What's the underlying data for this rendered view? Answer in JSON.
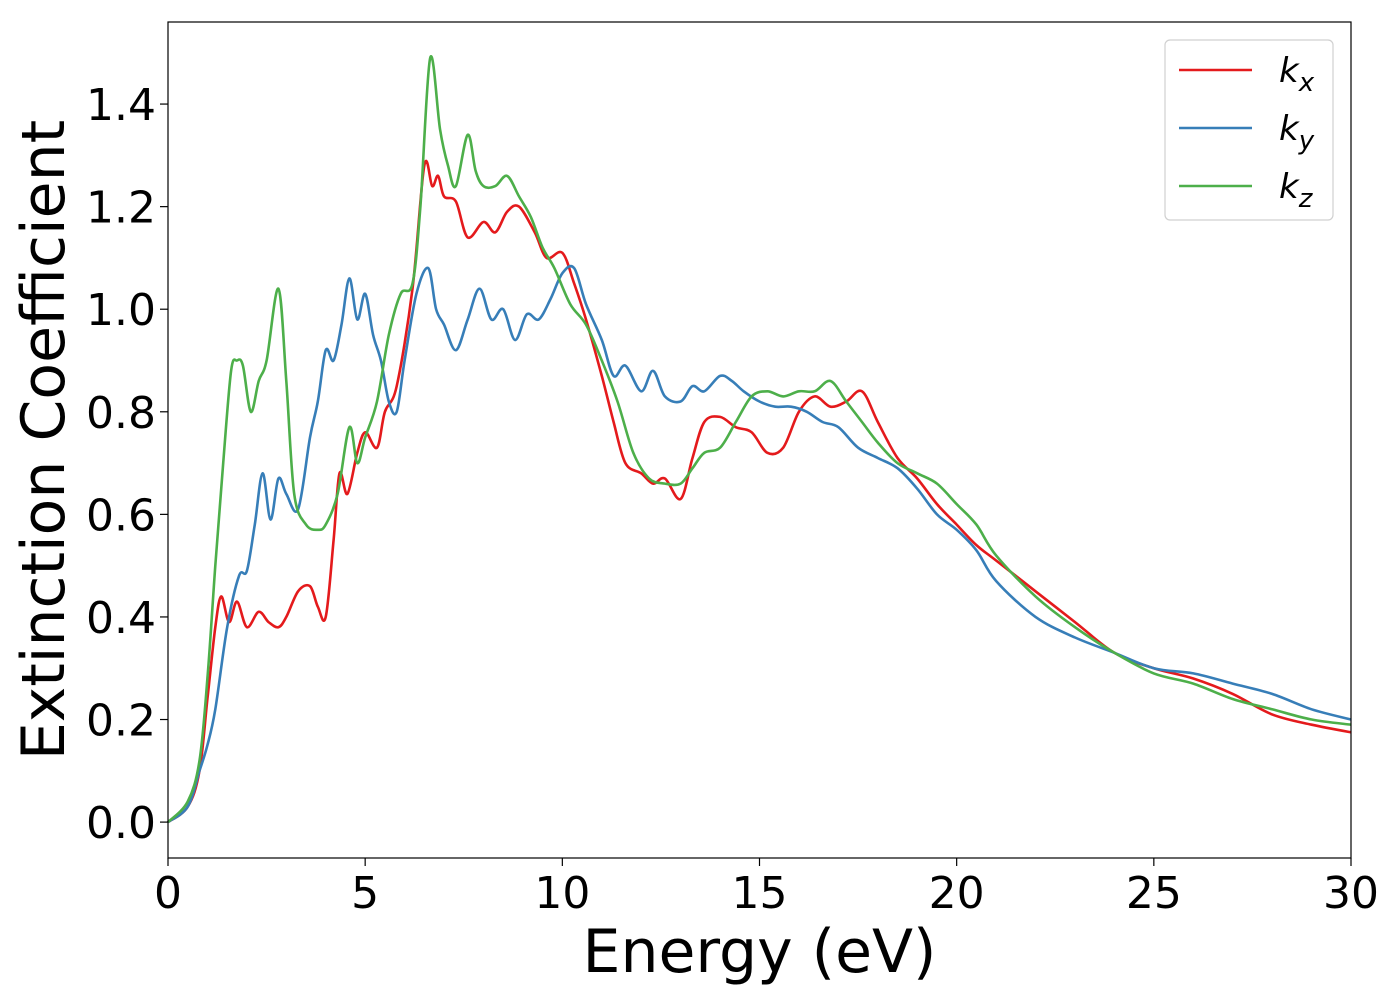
{
  "chart_data": {
    "type": "line",
    "title": "",
    "xlabel": "Energy (eV)",
    "ylabel": "Extinction Coefficient",
    "xlim": [
      0,
      30
    ],
    "ylim": [
      -0.07,
      1.56
    ],
    "xticks": [
      0,
      5,
      10,
      15,
      20,
      25,
      30
    ],
    "xtick_labels": [
      "0",
      "5",
      "10",
      "15",
      "20",
      "25",
      "30"
    ],
    "yticks": [
      0.0,
      0.2,
      0.4,
      0.6,
      0.8,
      1.0,
      1.2,
      1.4
    ],
    "ytick_labels": [
      "0.0",
      "0.2",
      "0.4",
      "0.6",
      "0.8",
      "1.0",
      "1.2",
      "1.4"
    ],
    "grid": false,
    "legend_position": "top-right",
    "series": [
      {
        "name": "k_x",
        "label_main": "k",
        "label_sub": "x",
        "color": "#e41a1c",
        "x": [
          0,
          0.5,
          0.8,
          1.0,
          1.2,
          1.35,
          1.55,
          1.75,
          2.0,
          2.3,
          2.55,
          2.8,
          3.0,
          3.3,
          3.6,
          3.8,
          4.0,
          4.2,
          4.35,
          4.55,
          4.8,
          5.0,
          5.3,
          5.5,
          5.8,
          6.2,
          6.5,
          6.7,
          6.85,
          7.0,
          7.3,
          7.6,
          8.0,
          8.3,
          8.6,
          8.9,
          9.3,
          9.6,
          10.0,
          10.3,
          10.6,
          11.0,
          11.3,
          11.6,
          12.0,
          12.3,
          12.6,
          13.0,
          13.3,
          13.6,
          14.0,
          14.4,
          14.8,
          15.2,
          15.6,
          16.0,
          16.4,
          16.8,
          17.2,
          17.6,
          18.0,
          18.5,
          19.0,
          19.5,
          20.0,
          20.5,
          21.0,
          22.0,
          23.0,
          24.0,
          25.0,
          26.0,
          27.0,
          28.0,
          29.0,
          30.0
        ],
        "y": [
          0.0,
          0.03,
          0.1,
          0.24,
          0.38,
          0.44,
          0.39,
          0.43,
          0.38,
          0.41,
          0.39,
          0.38,
          0.4,
          0.45,
          0.46,
          0.42,
          0.4,
          0.55,
          0.68,
          0.64,
          0.72,
          0.76,
          0.73,
          0.8,
          0.85,
          1.04,
          1.28,
          1.24,
          1.26,
          1.22,
          1.21,
          1.14,
          1.17,
          1.15,
          1.19,
          1.2,
          1.15,
          1.1,
          1.11,
          1.05,
          0.98,
          0.87,
          0.78,
          0.7,
          0.68,
          0.66,
          0.67,
          0.63,
          0.71,
          0.78,
          0.79,
          0.77,
          0.76,
          0.72,
          0.73,
          0.8,
          0.83,
          0.81,
          0.82,
          0.84,
          0.78,
          0.71,
          0.67,
          0.62,
          0.58,
          0.54,
          0.51,
          0.45,
          0.39,
          0.33,
          0.3,
          0.28,
          0.25,
          0.21,
          0.19,
          0.175
        ]
      },
      {
        "name": "k_y",
        "label_main": "k",
        "label_sub": "y",
        "color": "#377eb8",
        "x": [
          0,
          0.5,
          0.8,
          1.0,
          1.2,
          1.5,
          1.8,
          2.0,
          2.2,
          2.4,
          2.6,
          2.8,
          3.0,
          3.3,
          3.6,
          3.8,
          4.0,
          4.2,
          4.4,
          4.6,
          4.8,
          5.0,
          5.2,
          5.4,
          5.6,
          5.8,
          6.0,
          6.3,
          6.6,
          6.8,
          7.0,
          7.3,
          7.6,
          7.9,
          8.2,
          8.5,
          8.8,
          9.1,
          9.4,
          9.7,
          10.0,
          10.3,
          10.6,
          11.0,
          11.3,
          11.6,
          12.0,
          12.3,
          12.6,
          13.0,
          13.3,
          13.6,
          14.0,
          14.3,
          14.6,
          15.0,
          15.4,
          15.8,
          16.2,
          16.6,
          17.0,
          17.5,
          18.0,
          18.5,
          19.0,
          19.5,
          20.0,
          20.5,
          21.0,
          22.0,
          23.0,
          24.0,
          25.0,
          26.0,
          27.0,
          28.0,
          29.0,
          30.0
        ],
        "y": [
          0.0,
          0.03,
          0.1,
          0.15,
          0.22,
          0.38,
          0.48,
          0.49,
          0.58,
          0.68,
          0.59,
          0.67,
          0.64,
          0.61,
          0.75,
          0.82,
          0.92,
          0.9,
          0.97,
          1.06,
          0.98,
          1.03,
          0.95,
          0.9,
          0.82,
          0.8,
          0.9,
          1.03,
          1.08,
          1.0,
          0.97,
          0.92,
          0.98,
          1.04,
          0.98,
          1.0,
          0.94,
          0.99,
          0.98,
          1.02,
          1.07,
          1.08,
          1.01,
          0.94,
          0.87,
          0.89,
          0.84,
          0.88,
          0.83,
          0.82,
          0.85,
          0.84,
          0.87,
          0.86,
          0.84,
          0.82,
          0.81,
          0.81,
          0.8,
          0.78,
          0.77,
          0.73,
          0.71,
          0.69,
          0.65,
          0.6,
          0.57,
          0.53,
          0.47,
          0.4,
          0.36,
          0.33,
          0.3,
          0.29,
          0.27,
          0.25,
          0.22,
          0.2
        ]
      },
      {
        "name": "k_z",
        "label_main": "k",
        "label_sub": "z",
        "color": "#4daf4a",
        "x": [
          0,
          0.5,
          0.8,
          1.0,
          1.2,
          1.4,
          1.6,
          1.75,
          1.9,
          2.1,
          2.3,
          2.5,
          2.8,
          3.0,
          3.2,
          3.5,
          3.8,
          4.0,
          4.3,
          4.6,
          4.8,
          5.0,
          5.3,
          5.6,
          5.9,
          6.2,
          6.4,
          6.65,
          6.9,
          7.1,
          7.3,
          7.6,
          7.8,
          8.0,
          8.3,
          8.6,
          8.9,
          9.2,
          9.5,
          9.8,
          10.2,
          10.6,
          11.0,
          11.4,
          11.8,
          12.2,
          12.6,
          13.0,
          13.3,
          13.6,
          14.0,
          14.4,
          14.8,
          15.2,
          15.6,
          16.0,
          16.4,
          16.8,
          17.2,
          17.6,
          18.0,
          18.5,
          19.0,
          19.5,
          20.0,
          20.5,
          21.0,
          22.0,
          23.0,
          24.0,
          25.0,
          26.0,
          27.0,
          28.0,
          29.0,
          30.0
        ],
        "y": [
          0.0,
          0.04,
          0.12,
          0.28,
          0.5,
          0.7,
          0.88,
          0.9,
          0.89,
          0.8,
          0.86,
          0.9,
          1.04,
          0.86,
          0.64,
          0.58,
          0.57,
          0.58,
          0.64,
          0.77,
          0.7,
          0.75,
          0.82,
          0.95,
          1.03,
          1.05,
          1.2,
          1.49,
          1.35,
          1.28,
          1.24,
          1.34,
          1.27,
          1.24,
          1.24,
          1.26,
          1.22,
          1.18,
          1.12,
          1.08,
          1.01,
          0.97,
          0.9,
          0.82,
          0.72,
          0.67,
          0.66,
          0.66,
          0.69,
          0.72,
          0.73,
          0.78,
          0.83,
          0.84,
          0.83,
          0.84,
          0.84,
          0.86,
          0.82,
          0.78,
          0.74,
          0.7,
          0.68,
          0.66,
          0.62,
          0.58,
          0.52,
          0.44,
          0.38,
          0.33,
          0.29,
          0.27,
          0.24,
          0.22,
          0.2,
          0.19
        ]
      }
    ]
  }
}
